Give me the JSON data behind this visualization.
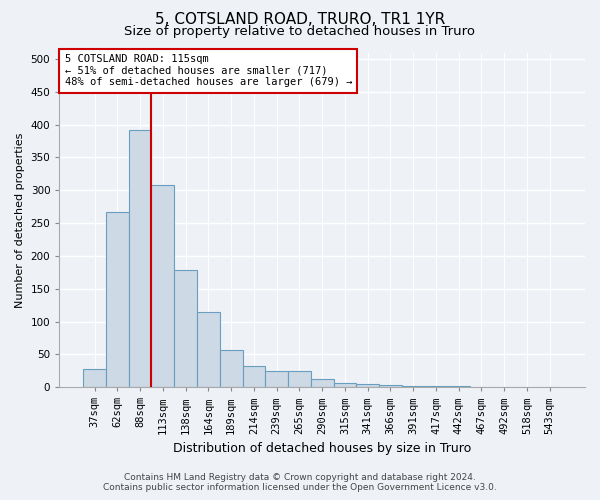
{
  "title1": "5, COTSLAND ROAD, TRURO, TR1 1YR",
  "title2": "Size of property relative to detached houses in Truro",
  "xlabel": "Distribution of detached houses by size in Truro",
  "ylabel": "Number of detached properties",
  "categories": [
    "37sqm",
    "62sqm",
    "88sqm",
    "113sqm",
    "138sqm",
    "164sqm",
    "189sqm",
    "214sqm",
    "239sqm",
    "265sqm",
    "290sqm",
    "315sqm",
    "341sqm",
    "366sqm",
    "391sqm",
    "417sqm",
    "442sqm",
    "467sqm",
    "492sqm",
    "518sqm",
    "543sqm"
  ],
  "values": [
    28,
    267,
    392,
    308,
    178,
    114,
    57,
    32,
    24,
    24,
    13,
    7,
    5,
    3,
    2,
    1,
    1,
    0,
    0,
    0,
    0
  ],
  "bar_color": "#cdd9e5",
  "bar_edge_color": "#6a9ec0",
  "bar_edge_width": 0.8,
  "vline_x_index": 3,
  "vline_color": "#cc0000",
  "annotation_line1": "5 COTSLAND ROAD: 115sqm",
  "annotation_line2": "← 51% of detached houses are smaller (717)",
  "annotation_line3": "48% of semi-detached houses are larger (679) →",
  "annotation_box_color": "#ffffff",
  "annotation_box_edge": "#cc0000",
  "ylim": [
    0,
    510
  ],
  "yticks": [
    0,
    50,
    100,
    150,
    200,
    250,
    300,
    350,
    400,
    450,
    500
  ],
  "bg_color": "#eef2f7",
  "plot_bg_color": "#eef2f7",
  "grid_color": "#ffffff",
  "footer1": "Contains HM Land Registry data © Crown copyright and database right 2024.",
  "footer2": "Contains public sector information licensed under the Open Government Licence v3.0.",
  "title1_fontsize": 11,
  "title2_fontsize": 9.5,
  "xlabel_fontsize": 9,
  "ylabel_fontsize": 8,
  "tick_fontsize": 7.5,
  "annot_fontsize": 7.5,
  "footer_fontsize": 6.5
}
